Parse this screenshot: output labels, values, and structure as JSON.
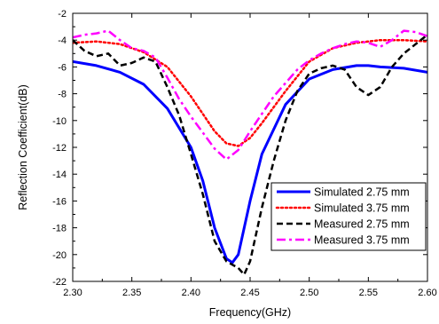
{
  "chart_data": {
    "type": "line",
    "title": "",
    "xlabel": "Frequency(GHz)",
    "ylabel": "Reflection Coefficient(dB)",
    "xlim": [
      2.3,
      2.6
    ],
    "ylim": [
      -22,
      -2
    ],
    "xticks": [
      2.3,
      2.35,
      2.4,
      2.45,
      2.5,
      2.55,
      2.6
    ],
    "xtick_labels": [
      "2.30",
      "2.35",
      "2.40",
      "2.45",
      "2.50",
      "2.55",
      "2.60"
    ],
    "yticks": [
      -22,
      -20,
      -18,
      -16,
      -14,
      -12,
      -10,
      -8,
      -6,
      -4,
      -2
    ],
    "ytick_labels": [
      "-22",
      "-20",
      "-18",
      "-16",
      "-14",
      "-12",
      "-10",
      "-8",
      "-6",
      "-4",
      "-2"
    ],
    "grid": false,
    "legend_position": "lower-right",
    "series": [
      {
        "name": "Simulated 2.75 mm",
        "color": "#0000ff",
        "style": "solid",
        "x": [
          2.3,
          2.32,
          2.34,
          2.36,
          2.38,
          2.4,
          2.41,
          2.42,
          2.43,
          2.435,
          2.44,
          2.45,
          2.46,
          2.48,
          2.5,
          2.52,
          2.54,
          2.55,
          2.56,
          2.58,
          2.6
        ],
        "y": [
          -5.6,
          -5.9,
          -6.4,
          -7.3,
          -9.1,
          -12.0,
          -14.5,
          -18.0,
          -20.3,
          -20.6,
          -20.0,
          -16.0,
          -12.5,
          -8.8,
          -6.9,
          -6.2,
          -5.9,
          -5.9,
          -6.0,
          -6.1,
          -6.4
        ]
      },
      {
        "name": "Simulated 3.75 mm",
        "color": "#ff0000",
        "style": "dotted",
        "x": [
          2.3,
          2.32,
          2.34,
          2.36,
          2.38,
          2.4,
          2.42,
          2.43,
          2.44,
          2.45,
          2.46,
          2.48,
          2.5,
          2.52,
          2.54,
          2.56,
          2.58,
          2.6
        ],
        "y": [
          -4.2,
          -4.1,
          -4.3,
          -4.9,
          -6.0,
          -8.2,
          -10.8,
          -11.7,
          -11.9,
          -11.3,
          -10.2,
          -7.8,
          -5.6,
          -4.6,
          -4.2,
          -4.0,
          -4.0,
          -4.1
        ]
      },
      {
        "name": "Measured 2.75 mm",
        "color": "#000000",
        "style": "dashed",
        "x": [
          2.3,
          2.31,
          2.32,
          2.33,
          2.34,
          2.35,
          2.36,
          2.37,
          2.38,
          2.39,
          2.4,
          2.41,
          2.42,
          2.43,
          2.44,
          2.445,
          2.45,
          2.46,
          2.47,
          2.48,
          2.49,
          2.5,
          2.51,
          2.52,
          2.53,
          2.54,
          2.55,
          2.56,
          2.57,
          2.58,
          2.59,
          2.6
        ],
        "y": [
          -4.0,
          -4.8,
          -5.2,
          -5.0,
          -5.9,
          -5.7,
          -5.3,
          -5.6,
          -7.5,
          -9.6,
          -12.5,
          -15.5,
          -19.0,
          -20.5,
          -21.0,
          -21.5,
          -20.5,
          -16.5,
          -13.0,
          -10.0,
          -7.8,
          -6.5,
          -6.1,
          -5.9,
          -6.2,
          -7.5,
          -8.1,
          -7.5,
          -6.0,
          -5.0,
          -4.3,
          -3.6
        ]
      },
      {
        "name": "Measured 3.75 mm",
        "color": "#ff00ff",
        "style": "dashdot",
        "x": [
          2.3,
          2.31,
          2.32,
          2.33,
          2.34,
          2.35,
          2.36,
          2.37,
          2.38,
          2.39,
          2.4,
          2.41,
          2.42,
          2.43,
          2.44,
          2.45,
          2.46,
          2.47,
          2.48,
          2.49,
          2.5,
          2.51,
          2.52,
          2.53,
          2.54,
          2.55,
          2.56,
          2.57,
          2.58,
          2.59,
          2.6
        ],
        "y": [
          -3.8,
          -3.6,
          -3.5,
          -3.3,
          -4.0,
          -4.6,
          -4.8,
          -5.3,
          -6.8,
          -8.4,
          -9.7,
          -10.9,
          -12.1,
          -12.9,
          -12.2,
          -10.8,
          -9.5,
          -8.2,
          -7.2,
          -6.2,
          -5.5,
          -5.0,
          -4.6,
          -4.3,
          -4.1,
          -4.2,
          -4.5,
          -4.0,
          -3.3,
          -3.4,
          -3.7
        ]
      }
    ]
  }
}
